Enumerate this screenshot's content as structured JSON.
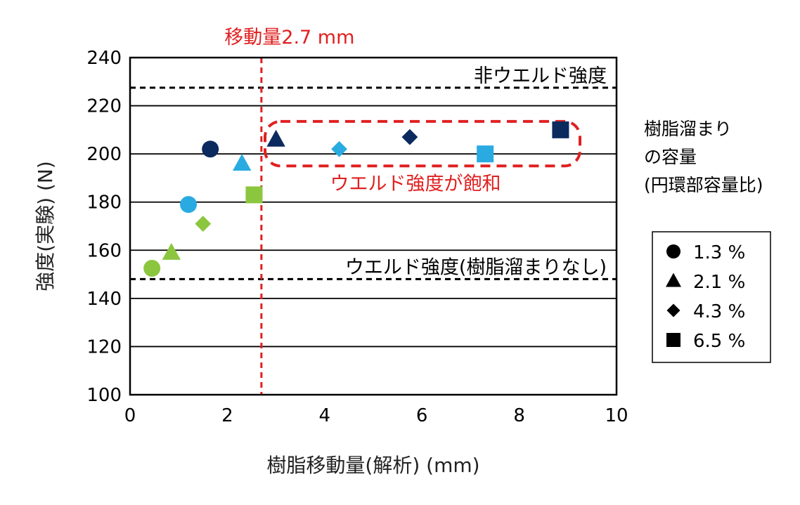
{
  "chart_data": {
    "type": "scatter",
    "xlabel": "樹脂移動量(解析) (mm)",
    "ylabel": "強度(実験) (N)",
    "xlim": [
      0,
      10
    ],
    "ylim": [
      100,
      240
    ],
    "xticks": [
      0,
      2,
      4,
      6,
      8,
      10
    ],
    "yticks": [
      100,
      120,
      140,
      160,
      180,
      200,
      220,
      240
    ],
    "grid": "horizontal",
    "series": [
      {
        "name": "1.3 %",
        "marker": "circle",
        "points": [
          {
            "x": 0.45,
            "y": 152.5,
            "color": "#8cc63f"
          },
          {
            "x": 1.2,
            "y": 179,
            "color": "#29abe2"
          },
          {
            "x": 1.65,
            "y": 202,
            "color": "#0b2a5e"
          }
        ]
      },
      {
        "name": "2.1 %",
        "marker": "triangle",
        "points": [
          {
            "x": 0.85,
            "y": 159,
            "color": "#8cc63f"
          },
          {
            "x": 2.3,
            "y": 196,
            "color": "#29abe2"
          },
          {
            "x": 3.0,
            "y": 206,
            "color": "#0b2a5e"
          }
        ]
      },
      {
        "name": "4.3 %",
        "marker": "diamond",
        "points": [
          {
            "x": 1.5,
            "y": 171,
            "color": "#8cc63f"
          },
          {
            "x": 4.3,
            "y": 202,
            "color": "#29abe2"
          },
          {
            "x": 5.75,
            "y": 207,
            "color": "#0b2a5e"
          }
        ]
      },
      {
        "name": "6.5 %",
        "marker": "square",
        "points": [
          {
            "x": 2.55,
            "y": 183,
            "color": "#8cc63f"
          },
          {
            "x": 7.3,
            "y": 200,
            "color": "#29abe2"
          },
          {
            "x": 8.85,
            "y": 210,
            "color": "#0b2a5e"
          }
        ]
      }
    ],
    "reference_lines": [
      {
        "axis": "y",
        "value": 227.5,
        "style": "dashed",
        "color": "#000000",
        "label": "非ウエルド強度"
      },
      {
        "axis": "y",
        "value": 148,
        "style": "dashed",
        "color": "#000000",
        "label": "ウエルド強度(樹脂溜まりなし)"
      },
      {
        "axis": "x",
        "value": 2.7,
        "style": "dashed",
        "color": "#e02020",
        "label": "移動量2.7 mm"
      }
    ],
    "highlight_box": {
      "label": "ウエルド強度が飽和",
      "color": "#e02020"
    },
    "side_note": [
      "樹脂溜まり",
      "の容量",
      "(円環部容量比)"
    ],
    "legend": {
      "position": "right",
      "entries": [
        "1.3 %",
        "2.1 %",
        "4.3 %",
        "6.5 %"
      ]
    }
  }
}
